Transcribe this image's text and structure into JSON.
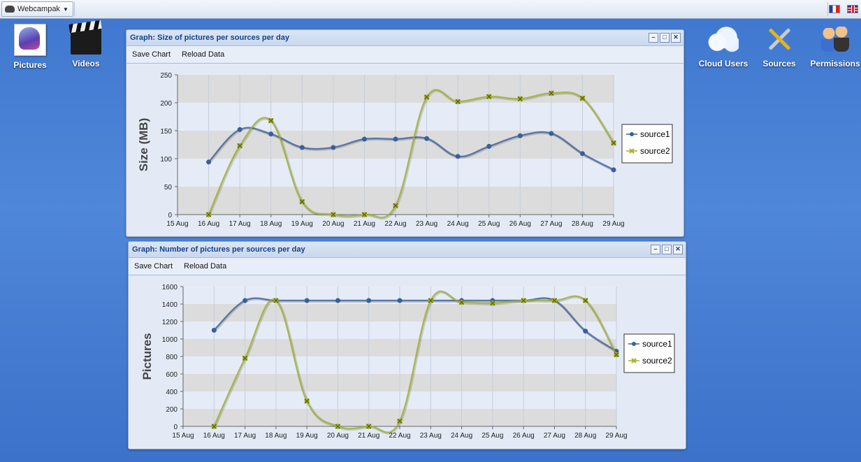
{
  "topbar": {
    "app_menu_label": "Webcampak",
    "flags": [
      "fr-flag",
      "uk-flag"
    ]
  },
  "desktop_icons": {
    "pictures": "Pictures",
    "videos": "Videos",
    "cloud_users": "Cloud Users",
    "sources": "Sources",
    "permissions": "Permissions"
  },
  "window_size": {
    "title": "Graph: Size of pictures per sources per day",
    "save_label": "Save Chart",
    "reload_label": "Reload Data"
  },
  "window_count": {
    "title": "Graph: Number of pictures per sources per day",
    "save_label": "Save Chart",
    "reload_label": "Reload Data"
  },
  "colors": {
    "source1": "#3a5f9a",
    "source2": "#a2b12a",
    "band": "#dcdcdc"
  },
  "chart_data": [
    {
      "type": "line",
      "categories": [
        "15 Aug",
        "16 Aug",
        "17 Aug",
        "18 Aug",
        "19 Aug",
        "20 Aug",
        "21 Aug",
        "22 Aug",
        "23 Aug",
        "24 Aug",
        "25 Aug",
        "26 Aug",
        "27 Aug",
        "28 Aug",
        "29 Aug"
      ],
      "ylabel": "Size (MB)",
      "ylim": [
        0,
        250
      ],
      "yticks": [
        0,
        50,
        100,
        150,
        200,
        250
      ],
      "legend_position": "right",
      "series": [
        {
          "name": "source1",
          "values": [
            null,
            94,
            152,
            144,
            120,
            120,
            135,
            135,
            136,
            104,
            122,
            141,
            145,
            109,
            80
          ]
        },
        {
          "name": "source2",
          "values": [
            null,
            0,
            123,
            168,
            23,
            0,
            0,
            16,
            210,
            202,
            211,
            207,
            217,
            208,
            128
          ]
        }
      ]
    },
    {
      "type": "line",
      "categories": [
        "15 Aug",
        "16 Aug",
        "17 Aug",
        "18 Aug",
        "19 Aug",
        "20 Aug",
        "21 Aug",
        "22 Aug",
        "23 Aug",
        "24 Aug",
        "25 Aug",
        "26 Aug",
        "27 Aug",
        "28 Aug",
        "29 Aug"
      ],
      "ylabel": "Pictures",
      "ylim": [
        0,
        1600
      ],
      "yticks": [
        0,
        200,
        400,
        600,
        800,
        1000,
        1200,
        1400,
        1600
      ],
      "legend_position": "right",
      "series": [
        {
          "name": "source1",
          "values": [
            null,
            1100,
            1440,
            1440,
            1440,
            1440,
            1440,
            1440,
            1440,
            1440,
            1440,
            1440,
            1440,
            1090,
            860
          ]
        },
        {
          "name": "source2",
          "values": [
            null,
            0,
            780,
            1440,
            290,
            0,
            0,
            60,
            1440,
            1420,
            1410,
            1440,
            1440,
            1440,
            820
          ]
        }
      ]
    }
  ]
}
